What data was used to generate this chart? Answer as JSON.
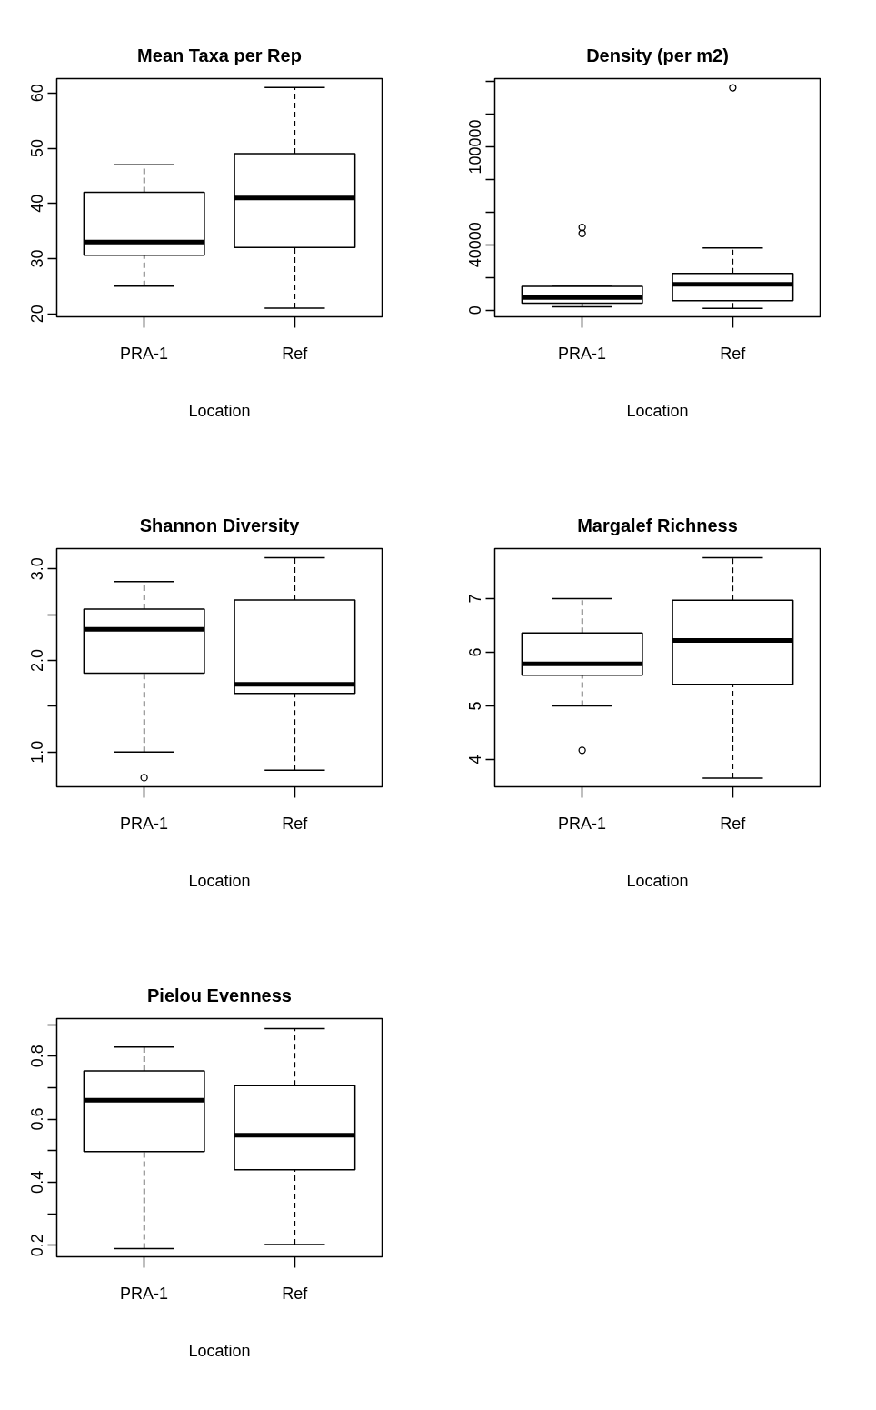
{
  "chart_data": [
    {
      "type": "box",
      "title": "Mean Taxa per Rep",
      "xlabel": "Location",
      "categories": [
        "PRA-1",
        "Ref"
      ],
      "ylim": [
        19.45,
        62.6
      ],
      "yticks": [
        20,
        30,
        40,
        50,
        60
      ],
      "boxes": [
        {
          "low": 25,
          "q1": 30.6,
          "median": 33,
          "q3": 42,
          "high": 47
        },
        {
          "low": 21,
          "q1": 32,
          "median": 41,
          "q3": 49,
          "high": 61
        }
      ]
    },
    {
      "type": "box",
      "title": "Density (per m2)",
      "xlabel": "Location",
      "categories": [
        "PRA-1",
        "Ref"
      ],
      "ylim": [
        -4100,
        141800
      ],
      "yticks": [
        0,
        {
          "value": 20000,
          "label": null
        },
        40000,
        {
          "value": 60000,
          "label": null
        },
        {
          "value": 80000,
          "label": null
        },
        100000,
        {
          "value": 120000,
          "label": null
        },
        {
          "value": 140000,
          "label": null
        }
      ],
      "boxes": [
        {
          "low": 2000,
          "q1": 4300,
          "median": 7800,
          "q3": 14500,
          "high": 14500,
          "outliers": [
            47000,
            50700
          ]
        },
        {
          "low": 1100,
          "q1": 5800,
          "median": 15800,
          "q3": 22500,
          "high": 38100,
          "outliers": [
            136200
          ]
        }
      ]
    },
    {
      "type": "box",
      "title": "Shannon Diversity",
      "xlabel": "Location",
      "categories": [
        "PRA-1",
        "Ref"
      ],
      "ylim": [
        0.62,
        3.22
      ],
      "yticks": [
        {
          "value": 1.0,
          "label": "1.0"
        },
        {
          "value": 1.5,
          "label": null
        },
        {
          "value": 2.0,
          "label": "2.0"
        },
        {
          "value": 2.5,
          "label": null
        },
        {
          "value": 3.0,
          "label": "3.0"
        }
      ],
      "boxes": [
        {
          "low": 1.0,
          "q1": 1.86,
          "median": 2.34,
          "q3": 2.56,
          "high": 2.86,
          "outliers": [
            0.72
          ]
        },
        {
          "low": 0.8,
          "q1": 1.64,
          "median": 1.74,
          "q3": 2.66,
          "high": 3.12
        }
      ]
    },
    {
      "type": "box",
      "title": "Margalef Richness",
      "xlabel": "Location",
      "categories": [
        "PRA-1",
        "Ref"
      ],
      "ylim": [
        3.49,
        7.93
      ],
      "yticks": [
        4,
        5,
        6,
        7
      ],
      "boxes": [
        {
          "low": 5.0,
          "q1": 5.57,
          "median": 5.78,
          "q3": 6.36,
          "high": 7.0,
          "outliers": [
            4.17
          ]
        },
        {
          "low": 3.65,
          "q1": 5.4,
          "median": 6.22,
          "q3": 6.97,
          "high": 7.76
        }
      ]
    },
    {
      "type": "box",
      "title": "Pielou Evenness",
      "xlabel": "Location",
      "categories": [
        "PRA-1",
        "Ref"
      ],
      "ylim": [
        0.163,
        0.919
      ],
      "yticks": [
        0.2,
        {
          "value": 0.3,
          "label": null
        },
        0.4,
        {
          "value": 0.5,
          "label": null
        },
        0.6,
        {
          "value": 0.7,
          "label": null
        },
        0.8,
        {
          "value": 0.9,
          "label": null
        }
      ],
      "boxes": [
        {
          "low": 0.189,
          "q1": 0.497,
          "median": 0.66,
          "q3": 0.753,
          "high": 0.829
        },
        {
          "low": 0.202,
          "q1": 0.439,
          "median": 0.549,
          "q3": 0.706,
          "high": 0.887
        }
      ]
    }
  ]
}
